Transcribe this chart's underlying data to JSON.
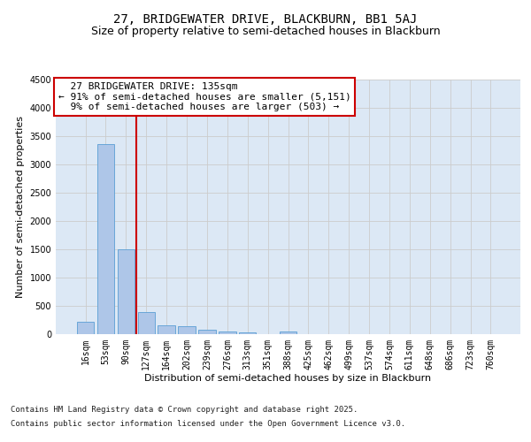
{
  "title_line1": "27, BRIDGEWATER DRIVE, BLACKBURN, BB1 5AJ",
  "title_line2": "Size of property relative to semi-detached houses in Blackburn",
  "xlabel": "Distribution of semi-detached houses by size in Blackburn",
  "ylabel": "Number of semi-detached properties",
  "footer_line1": "Contains HM Land Registry data © Crown copyright and database right 2025.",
  "footer_line2": "Contains public sector information licensed under the Open Government Licence v3.0.",
  "categories": [
    "16sqm",
    "53sqm",
    "90sqm",
    "127sqm",
    "164sqm",
    "202sqm",
    "239sqm",
    "276sqm",
    "313sqm",
    "351sqm",
    "388sqm",
    "425sqm",
    "462sqm",
    "499sqm",
    "537sqm",
    "574sqm",
    "611sqm",
    "648sqm",
    "686sqm",
    "723sqm",
    "760sqm"
  ],
  "values": [
    205,
    3360,
    1500,
    390,
    150,
    140,
    70,
    40,
    30,
    0,
    40,
    0,
    0,
    0,
    0,
    0,
    0,
    0,
    0,
    0,
    0
  ],
  "bar_color": "#aec6e8",
  "bar_edge_color": "#5a9fd4",
  "vline_x": 2.5,
  "property_name": "27 BRIDGEWATER DRIVE: 135sqm",
  "pct_smaller": 91,
  "count_smaller": 5151,
  "pct_larger": 9,
  "count_larger": 503,
  "annotation_box_color": "#ffffff",
  "annotation_box_edge_color": "#cc0000",
  "vline_color": "#cc0000",
  "ylim": [
    0,
    4500
  ],
  "yticks": [
    0,
    500,
    1000,
    1500,
    2000,
    2500,
    3000,
    3500,
    4000,
    4500
  ],
  "grid_color": "#cccccc",
  "bg_color": "#dce8f5",
  "title_fontsize": 10,
  "subtitle_fontsize": 9,
  "axis_label_fontsize": 8,
  "tick_fontsize": 7,
  "annotation_fontsize": 8,
  "footer_fontsize": 6.5
}
